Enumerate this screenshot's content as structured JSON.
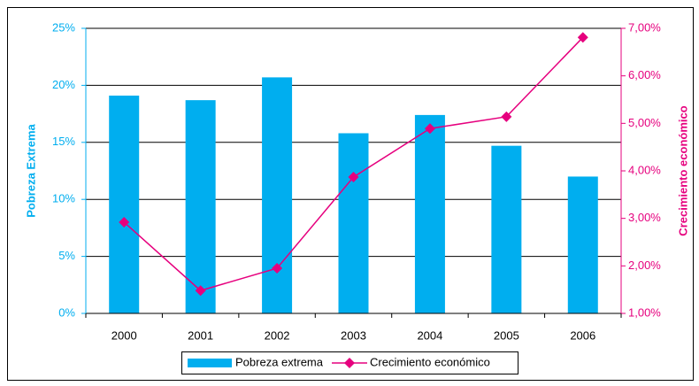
{
  "chart_data": {
    "type": "bar",
    "categories": [
      "2000",
      "2001",
      "2002",
      "2003",
      "2004",
      "2005",
      "2006"
    ],
    "series": [
      {
        "name": "Pobreza extrema",
        "type": "bar",
        "color": "#00aeef",
        "values": [
          19.1,
          18.7,
          20.7,
          15.8,
          17.4,
          14.7,
          12.0
        ]
      },
      {
        "name": "Crecimiento económico",
        "type": "line",
        "axis": "y2",
        "color": "#e6007e",
        "values": [
          2.92,
          1.48,
          1.95,
          3.87,
          4.89,
          5.14,
          6.81
        ]
      }
    ],
    "ylabel": "Pobreza Extrema",
    "y2label": "Crecimiento económico",
    "ylim": [
      0,
      25
    ],
    "yticks": [
      {
        "value": 0,
        "label": "0%"
      },
      {
        "value": 5,
        "label": "5%"
      },
      {
        "value": 10,
        "label": "10%"
      },
      {
        "value": 15,
        "label": "15%"
      },
      {
        "value": 20,
        "label": "20%"
      },
      {
        "value": 25,
        "label": "25%"
      }
    ],
    "y2lim": [
      1,
      7
    ],
    "y2ticks": [
      {
        "value": 1,
        "label": "1,00%"
      },
      {
        "value": 2,
        "label": "2,00%"
      },
      {
        "value": 3,
        "label": "3,00%"
      },
      {
        "value": 4,
        "label": "4,00%"
      },
      {
        "value": 5,
        "label": "5,00%"
      },
      {
        "value": 6,
        "label": "6,00%"
      },
      {
        "value": 7,
        "label": "7,00%"
      }
    ],
    "grid": true,
    "legend": "bottom"
  }
}
